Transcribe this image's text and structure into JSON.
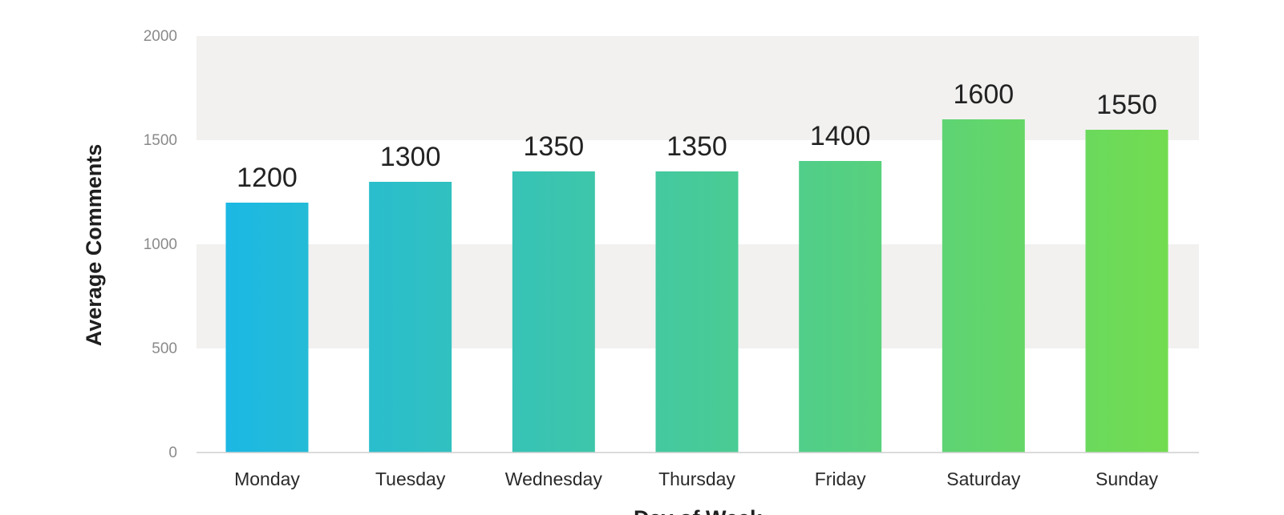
{
  "chart_data": {
    "type": "bar",
    "categories": [
      "Monday",
      "Tuesday",
      "Wednesday",
      "Thursday",
      "Friday",
      "Saturday",
      "Sunday"
    ],
    "values": [
      1200,
      1300,
      1350,
      1350,
      1400,
      1600,
      1550
    ],
    "value_labels": [
      "1200",
      "1300",
      "1350",
      "1350",
      "1400",
      "1600",
      "1550"
    ],
    "title": "",
    "xlabel": "Day of Week",
    "ylabel": "Average Comments",
    "ylim": [
      0,
      2000
    ],
    "yticks": [
      0,
      500,
      1000,
      1500,
      2000
    ],
    "ytick_labels": [
      "0",
      "500",
      "1000",
      "1500",
      "2000"
    ],
    "grid": "alternating horizontal bands",
    "legend": "none",
    "colors": {
      "bar_start": "#1cb8e4",
      "bar_end": "#72dc50",
      "band": "#f2f1f0",
      "axis_line": "#cfcfcf"
    }
  }
}
